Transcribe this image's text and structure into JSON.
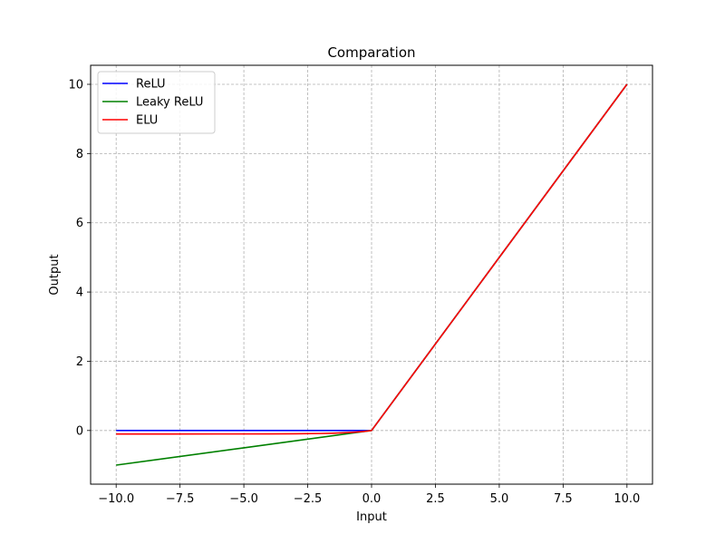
{
  "chart_data": {
    "type": "line",
    "title": "Comparation",
    "xlabel": "Input",
    "ylabel": "Output",
    "xlim": [
      -11,
      11
    ],
    "ylim": [
      -1.55,
      10.55
    ],
    "xticks": [
      -10,
      -7.5,
      -5,
      -2.5,
      0,
      2.5,
      5,
      7.5,
      10
    ],
    "xtick_labels": [
      "−10.0",
      "−7.5",
      "−5.0",
      "−2.5",
      "0.0",
      "2.5",
      "5.0",
      "7.5",
      "10.0"
    ],
    "yticks": [
      0,
      2,
      4,
      6,
      8,
      10
    ],
    "ytick_labels": [
      "0",
      "2",
      "4",
      "6",
      "8",
      "10"
    ],
    "grid": true,
    "legend_position": "top-left",
    "series": [
      {
        "name": "ReLU",
        "color": "#0000ff",
        "x": [
          -10,
          -5,
          0,
          5,
          10
        ],
        "y": [
          0,
          0,
          0,
          5,
          10
        ]
      },
      {
        "name": "Leaky ReLU",
        "color": "#008000",
        "x": [
          -10,
          -5,
          0,
          5,
          10
        ],
        "y": [
          -1,
          -0.5,
          0,
          5,
          10
        ]
      },
      {
        "name": "ELU",
        "color": "#ff0000",
        "x": [
          -10,
          -8,
          -6,
          -4,
          -3,
          -2,
          -1.5,
          -1,
          -0.75,
          -0.5,
          -0.25,
          -0.1,
          0,
          5,
          10
        ],
        "y": [
          -0.1,
          -0.09997,
          -0.09975,
          -0.09817,
          -0.09502,
          -0.08647,
          -0.07769,
          -0.06321,
          -0.05276,
          -0.03935,
          -0.02212,
          -0.00952,
          0,
          5,
          10
        ]
      }
    ]
  }
}
